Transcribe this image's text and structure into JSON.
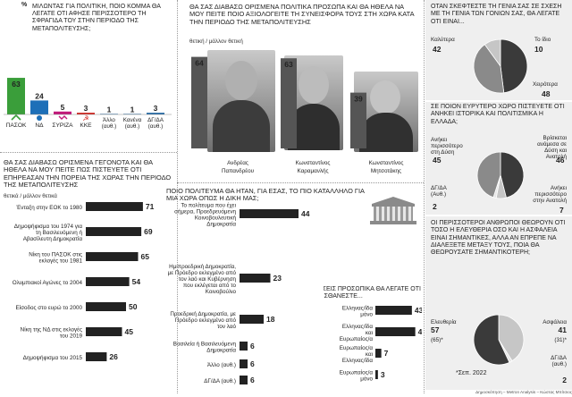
{
  "panel1": {
    "question": "ΜΙΛΩΝΤΑΣ ΓΙΑ ΠΟΛΙΤΙΚΗ, ΠΟΙΟ ΚΟΜΜΑ ΘΑ ΛΕΓΑΤΕ ΟΤΙ ΑΦΗΣΕ ΠΕΡΙΣΣΟΤΕΡΟ ΤΗ ΣΦΡΑΓΙΔΑ ΤΟΥ ΣΤΗΝ ΠΕΡΙΟΔΟ ΤΗΣ ΜΕΤΑΠΟΛΙΤΕΥΣΗΣ;",
    "unit": "%"
  },
  "panel2": {
    "question": "ΘΑ ΣΑΣ ΔΙΑΒΑΣΩ ΟΡΙΣΜΕΝΑ ΠΟΛΙΤΙΚΑ ΠΡΟΣΩΠΑ ΚΑΙ ΘΑ ΗΘΕΛΑ ΝΑ ΜΟΥ ΠΕΙΤΕ ΠΟΙΟ ΑΞΙΟΛΟΓΕΙΤΕ ΤΗ ΣΥΝΕΙΣΦΟΡΑ ΤΟΥΣ ΣΤΗ ΧΩΡΑ ΚΑΤΑ ΤΗΝ ΠΕΡΙΟΔΟ ΤΗΣ ΜΕΤΑΠΟΛΙΤΕΥΣΗΣ",
    "subtitle": "θετική / μάλλον θετική"
  },
  "panel3": {
    "question": "ΘΑ ΣΑΣ ΔΙΑΒΑΣΩ ΟΡΙΣΜΕΝΑ ΓΕΓΟΝΟΤΑ ΚΑΙ ΘΑ ΗΘΕΛΑ ΝΑ ΜΟΥ ΠΕΙΤΕ ΠΩΣ ΠΙΣΤΕΥΕΤΕ ΟΤΙ ΕΠΗΡΕΑΣΑΝ ΤΗΝ ΠΟΡΕΙΑ ΤΗΣ ΧΩΡΑΣ ΤΗΝ ΠΕΡΙΟΔΟ ΤΗΣ ΜΕΤΑΠΟΛΙΤΕΥΣΗΣ",
    "subtitle": "θετικά / μάλλον θετικά"
  },
  "panel4": {
    "question": "ΠΟΙΟ ΠΟΛΙΤΕΥΜΑ ΘΑ ΗΤΑΝ, ΓΙΑ ΕΣΑΣ, ΤΟ ΠΙΟ ΚΑΤΑΛΛΗΛΟ ΓΙΑ ΜΙΑ ΧΩΡΑ ΟΠΩΣ Η ΔΙΚΗ ΜΑΣ;"
  },
  "panel5": {
    "question": "ΕΣΕΙΣ ΠΡΟΣΩΠΙΚΑ ΘΑ ΛΕΓΑΤΕ ΟΤΙ ΑΙΣΘΑΝΕΣΤΕ..."
  },
  "panel6": {
    "question": "ΟΤΑΝ ΣΚΕΦΤΕΣΤΕ ΤΗ ΓΕΝΙΑ ΣΑΣ ΣΕ ΣΧΕΣΗ ΜΕ ΤΗ ΓΕΝΙΑ ΤΩΝ ΓΟΝΙΩΝ ΣΑΣ, ΘΑ ΛΕΓΑΤΕ ΟΤΙ ΕΙΝΑΙ..."
  },
  "panel7": {
    "question": "ΣΕ ΠΟΙΟΝ ΕΥΡΥΤΕΡΟ ΧΩΡΟ ΠΙΣΤΕΥΕΤΕ ΟΤΙ ΑΝΗΚΕΙ ΙΣΤΟΡΙΚΑ ΚΑΙ ΠΟΛΙΤΙΣΜΙΚΑ Η ΕΛΛΑΔΑ;"
  },
  "panel8": {
    "question": "ΟΙ ΠΕΡΙΣΣΟΤΕΡΟΙ ΑΝΘΡΩΠΟΙ ΘΕΩΡΟΥΝ ΟΤΙ ΤΟΣΟ Η ΕΛΕΥΘΕΡΙΑ ΟΣΟ ΚΑΙ Η ΑΣΦΑΛΕΙΑ ΕΙΝΑΙ ΣΗΜΑΝΤΙΚΕΣ, ΑΛΛΑ ΑΝ ΕΠΡΕΠΕ ΝΑ ΔΙΑΛΕΞΕΤΕ ΜΕΤΑΞΥ ΤΟΥΣ, ΠΟΙΑ ΘΑ ΘΕΩΡΟΥΣΑΤΕ ΣΗΜΑΝΤΙΚΟΤΕΡΗ;",
    "footnote": "*Σεπ. 2022"
  },
  "footer": {
    "source": "Δημοσκόπηση – Metron Analysis – Κώστας Μπίτσιος"
  },
  "colors": {
    "green": "#3a9e3a",
    "blue": "#1d6fb8",
    "magenta": "#c2187a",
    "red": "#d22a24",
    "navy": "#2a6ea8",
    "gray": "#8a8a8a"
  },
  "chart_data": [
    {
      "type": "bar",
      "categories": [
        "ΠΑΣΟΚ",
        "ΝΔ",
        "ΣΥΡΙΖΑ",
        "ΚΚΕ",
        "Άλλο (αυθ.)",
        "Κανένα (αυθ.)",
        "ΔΓ/ΔΑ (αυθ.)"
      ],
      "values": [
        63,
        24,
        5,
        3,
        1,
        1,
        3
      ],
      "colors": [
        "#3a9e3a",
        "#1d6fb8",
        "#c2187a",
        "#d22a24",
        "#2a6ea8",
        "#2a6ea8",
        "#2a6ea8"
      ]
    },
    {
      "type": "bar",
      "categories": [
        "Ανδρέας Παπανδρέου",
        "Κωνσταντίνος Καραμανλής",
        "Κωνσταντίνος Μητσοτάκης"
      ],
      "values": [
        64,
        63,
        39
      ]
    },
    {
      "type": "bar",
      "categories": [
        "Ένταξη στην ΕΟΚ το 1980",
        "Δημοψήφισμα του 1974 για τη Βασιλευόμενη ή Αβασίλευτη Δημοκρατία",
        "Νίκη του ΠΑΣΟΚ στις εκλογές του 1981",
        "Ολυμπιακοί Αγώνες το 2004",
        "Είσοδος στο ευρώ το 2000",
        "Νίκη της ΝΔ στις εκλογές του 2019",
        "Δημοψήφισμα του 2015"
      ],
      "values": [
        71,
        69,
        65,
        54,
        50,
        45,
        26
      ]
    },
    {
      "type": "bar",
      "categories": [
        "Το πολίτευμα που έχει σήμερα, Προεδρευόμενη Κοινοβουλευτική Δημοκρατία",
        "Ημιπροεδρική Δημοκρατία, με Πρόεδρο εκλεγμένο από τον λαό και Κυβέρνηση που εκλέγεται από το Κοινοβούλιο",
        "Προεδρική Δημοκρατία, με Πρόεδρο εκλεγμένο από τον λαό",
        "Βασιλεία ή Βασιλευόμενη Δημοκρατία",
        "Άλλο (αυθ.)",
        "ΔΓ/ΔΑ (αυθ.)"
      ],
      "values": [
        44,
        23,
        18,
        6,
        6,
        6
      ]
    },
    {
      "type": "bar",
      "categories": [
        "Ελληνας/ίδα μόνο",
        "Ελληνας/ίδα και Ευρωπαίος/α",
        "Ευρωπαίος/α και Ελληνας/ίδα",
        "Ευρωπαίος/α μόνο"
      ],
      "values": [
        43,
        47,
        7,
        3
      ]
    },
    {
      "type": "pie",
      "categories": [
        "Καλύτερα",
        "Το ίδιο",
        "Χειρότερα"
      ],
      "values": [
        42,
        10,
        48
      ]
    },
    {
      "type": "pie",
      "categories": [
        "Ανήκει περισσότερο στη Δύση",
        "Βρίσκεται ανάμεσα σε Δύση και Ανατολή",
        "ΔΓ/ΔΑ (Αυθ.)",
        "Ανήκει περισσότερο στην Ανατολή"
      ],
      "values": [
        45,
        46,
        2,
        7
      ]
    },
    {
      "type": "pie",
      "categories": [
        "Ελευθερία",
        "Ασφάλεια",
        "ΔΓ/ΔΑ (αυθ.)"
      ],
      "values": [
        57,
        41,
        2
      ],
      "previous": {
        "Ελευθερία": "(65)*",
        "Ασφάλεια": "(31)*"
      }
    }
  ]
}
